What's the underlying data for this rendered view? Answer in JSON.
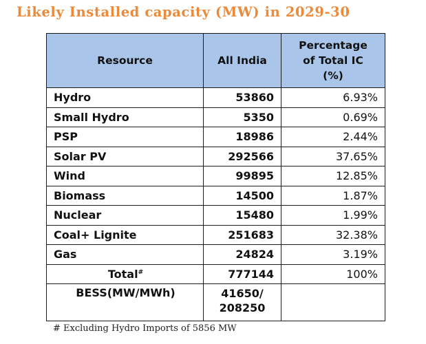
{
  "title": "Likely Installed capacity (MW) in 2029-30",
  "headers": {
    "resource": "Resource",
    "all_india": "All India",
    "percentage_line1": "Percentage",
    "percentage_line2": "of Total IC",
    "percentage_line3": "(%)"
  },
  "rows": [
    {
      "resource": "Hydro",
      "all_india": "53860",
      "percentage": "6.93%"
    },
    {
      "resource": "Small Hydro",
      "all_india": "5350",
      "percentage": "0.69%"
    },
    {
      "resource": "PSP",
      "all_india": "18986",
      "percentage": "2.44%"
    },
    {
      "resource": "Solar PV",
      "all_india": "292566",
      "percentage": "37.65%"
    },
    {
      "resource": "Wind",
      "all_india": "99895",
      "percentage": "12.85%"
    },
    {
      "resource": "Biomass",
      "all_india": "14500",
      "percentage": "1.87%"
    },
    {
      "resource": "Nuclear",
      "all_india": "15480",
      "percentage": "1.99%"
    },
    {
      "resource": "Coal+ Lignite",
      "all_india": "251683",
      "percentage": "32.38%"
    },
    {
      "resource": "Gas",
      "all_india": "24824",
      "percentage": "3.19%"
    }
  ],
  "total": {
    "resource": "Total",
    "mark": "#",
    "all_india": "777144",
    "percentage": "100%"
  },
  "bess": {
    "resource": "BESS(MW/MWh)",
    "value_line1": "41650/",
    "value_line2": "208250",
    "percentage": ""
  },
  "footnote": "# Excluding Hydro Imports of 5856 MW",
  "colors": {
    "title": "#ea8a3a",
    "header_bg": "#a9c6ea",
    "border": "#1a1a1a"
  }
}
